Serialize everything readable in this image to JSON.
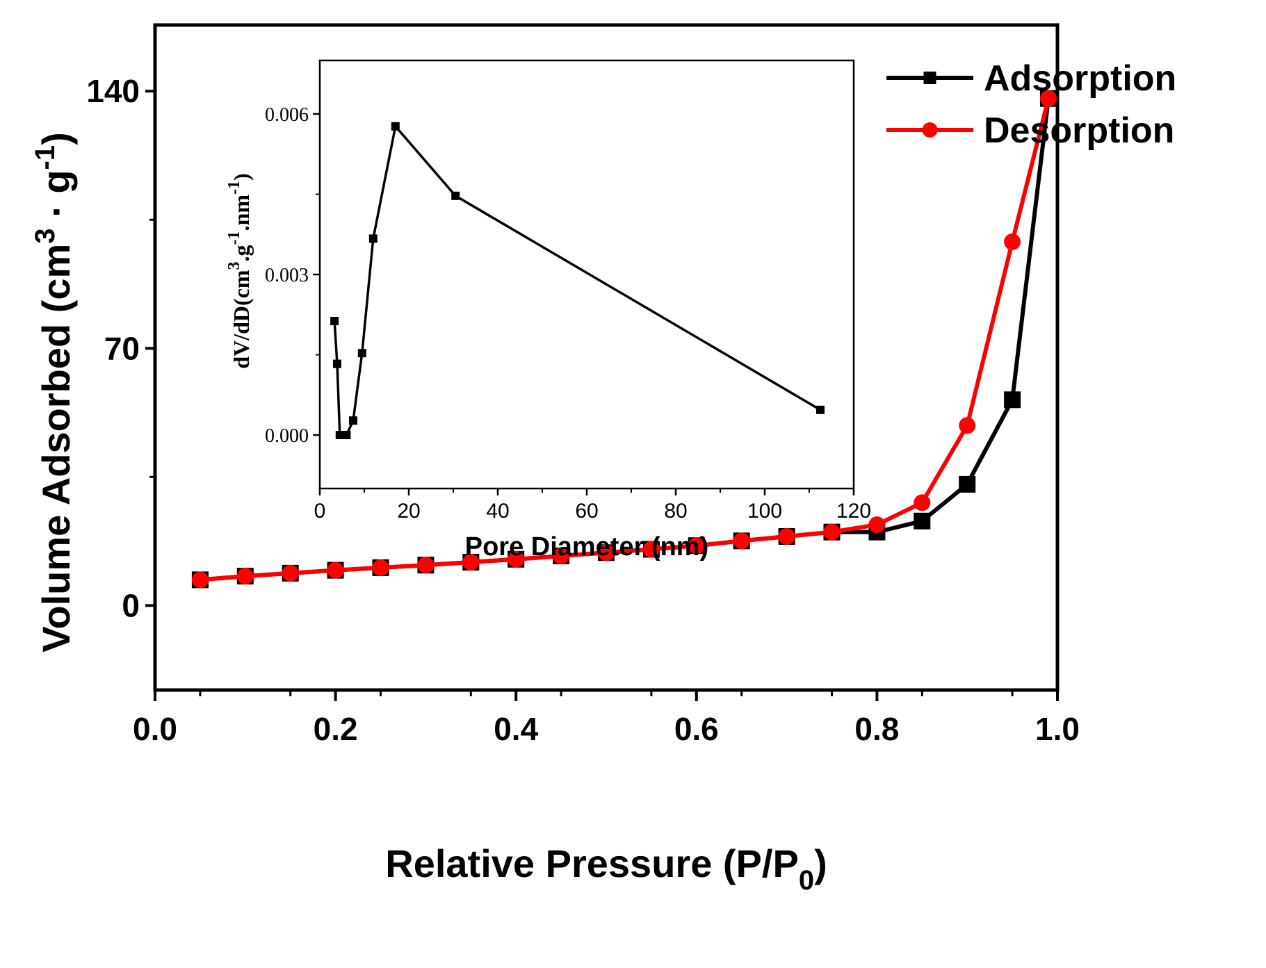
{
  "chart_data": [
    {
      "type": "line",
      "xlabel": "Relative Pressure (P/P0)",
      "xlabel_parts": {
        "main": "Relative Pressure (P/P",
        "sub": "0",
        "tail": ")"
      },
      "ylabel": "Volume Adsorbed (cm3 · g-1)",
      "ylabel_parts": {
        "a": "Volume Adsorbed (cm",
        "sup1": "3",
        "b": " · g",
        "sup2": "-1",
        "c": ")"
      },
      "xlim": [
        0.0,
        1.0
      ],
      "ylim": [
        -23,
        158
      ],
      "xticks": [
        0.0,
        0.2,
        0.4,
        0.6,
        0.8,
        1.0
      ],
      "xtick_labels": [
        "0.0",
        "0.2",
        "0.4",
        "0.6",
        "0.8",
        "1.0"
      ],
      "yticks": [
        0,
        70,
        140
      ],
      "ytick_labels": [
        "0",
        "70",
        "140"
      ],
      "legend_position": "top-right",
      "grid": false,
      "series": [
        {
          "name": "Adsorption",
          "color": "#000000",
          "marker": "square",
          "x": [
            0.05,
            0.1,
            0.15,
            0.2,
            0.25,
            0.3,
            0.35,
            0.4,
            0.45,
            0.5,
            0.55,
            0.6,
            0.65,
            0.7,
            0.75,
            0.8,
            0.85,
            0.9,
            0.95,
            0.99
          ],
          "y": [
            7.0,
            8.0,
            8.8,
            9.6,
            10.3,
            11.0,
            11.8,
            12.6,
            13.5,
            14.4,
            15.3,
            16.3,
            17.6,
            18.8,
            20.0,
            20.0,
            23.0,
            33.0,
            56.0,
            138.0
          ]
        },
        {
          "name": "Desorption",
          "color": "#ff0000",
          "marker": "circle",
          "x": [
            0.05,
            0.1,
            0.15,
            0.2,
            0.25,
            0.3,
            0.35,
            0.4,
            0.45,
            0.5,
            0.55,
            0.6,
            0.65,
            0.7,
            0.75,
            0.8,
            0.85,
            0.9,
            0.95,
            0.99
          ],
          "y": [
            7.0,
            8.0,
            8.8,
            9.6,
            10.3,
            11.0,
            11.8,
            12.6,
            13.5,
            14.4,
            15.3,
            16.3,
            17.6,
            18.8,
            20.0,
            22.0,
            28.0,
            49.0,
            99.0,
            138.0
          ]
        }
      ]
    },
    {
      "type": "line",
      "inset": true,
      "xlabel": "Pore Diameter (nm)",
      "ylabel": "dV/dD(cm3.g-1.nm-1)",
      "ylabel_parts": {
        "a": "dV/dD(cm",
        "sup1": "3",
        "b": ".g",
        "sup2": "-1",
        "c": ".nm",
        "sup3": "-1",
        "d": ")"
      },
      "xlim": [
        0,
        120
      ],
      "ylim": [
        -0.001,
        0.007
      ],
      "xticks": [
        0,
        20,
        40,
        60,
        80,
        100,
        120
      ],
      "xtick_labels": [
        "0",
        "20",
        "40",
        "60",
        "80",
        "100",
        "120"
      ],
      "yticks": [
        0.0,
        0.003,
        0.006
      ],
      "ytick_labels": [
        "0.000",
        "0.003",
        "0.006"
      ],
      "grid": false,
      "series": [
        {
          "color": "#000000",
          "marker": "square",
          "x": [
            3.3,
            3.9,
            4.5,
            5.2,
            6.0,
            7.5,
            9.5,
            12.0,
            17.0,
            30.5,
            112.5
          ],
          "y": [
            0.00213,
            0.00133,
            0.0,
            0.0,
            0.0,
            0.00027,
            0.00153,
            0.00367,
            0.00577,
            0.00447,
            0.00047
          ]
        }
      ]
    }
  ]
}
